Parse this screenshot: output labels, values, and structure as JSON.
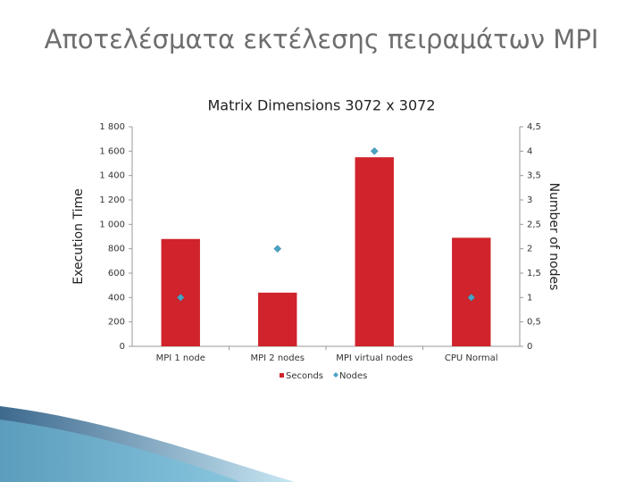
{
  "slide_title": "Αποτελέσματα εκτέλεσης πειραμάτων MPI",
  "chart_data": {
    "type": "bar",
    "title": "Matrix Dimensions 3072 x 3072",
    "y_label": "Execution Time",
    "y2_label": "Number of nodes",
    "categories": [
      "MPI 1 node",
      "MPI 2 nodes",
      "MPI virtual nodes",
      "CPU Normal"
    ],
    "series": [
      {
        "name": "Seconds",
        "type": "bar",
        "color": "#d0232b",
        "values": [
          880,
          440,
          1550,
          890
        ]
      },
      {
        "name": "Nodes",
        "type": "scatter",
        "axis": "y2",
        "color": "#4aa3c4",
        "values": [
          1,
          2,
          4,
          1
        ]
      }
    ],
    "ylim": [
      0,
      1800
    ],
    "yticks": [
      0,
      200,
      400,
      600,
      800,
      {
        "value": 1000,
        "label": "1 000"
      },
      {
        "value": 1200,
        "label": "1 200"
      },
      {
        "value": 1400,
        "label": "1 400"
      },
      {
        "value": 1600,
        "label": "1 600"
      },
      {
        "value": 1800,
        "label": "1 800"
      }
    ],
    "y2lim": [
      0,
      4.5
    ],
    "y2ticks": [
      0,
      {
        "value": 0.5,
        "label": "0,5"
      },
      1,
      {
        "value": 1.5,
        "label": "1,5"
      },
      2,
      {
        "value": 2.5,
        "label": "2,5"
      },
      3,
      {
        "value": 3.5,
        "label": "3,5"
      },
      4,
      {
        "value": 4.5,
        "label": "4,5"
      }
    ],
    "grid": false,
    "legend": "bottom"
  }
}
